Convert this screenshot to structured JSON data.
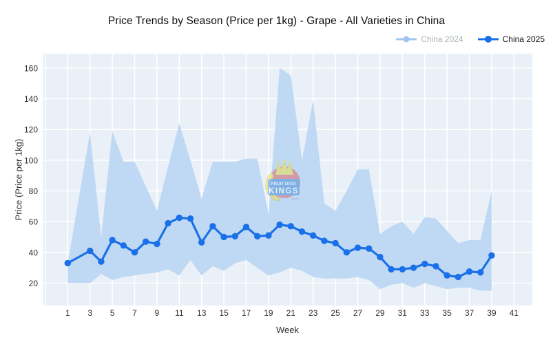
{
  "chart_data": {
    "type": "line",
    "title": "Price Trends by Season (Price per 1kg) - Grape - All Varieties in China",
    "xlabel": "Week",
    "ylabel": "Price (Price per 1kg)",
    "x_ticks": [
      1,
      3,
      5,
      7,
      9,
      11,
      13,
      15,
      17,
      19,
      21,
      23,
      25,
      27,
      29,
      31,
      33,
      35,
      37,
      39,
      41
    ],
    "x_grid_extra": [
      -1
    ],
    "y_ticks": [
      20,
      40,
      60,
      80,
      100,
      120,
      140,
      160
    ],
    "grid_on": true,
    "plot_bg_color": "#e9f0f7",
    "grid_color": "#ffffff",
    "tick_label_color": "#2f2f2f",
    "legend_position": "top-right",
    "legend": [
      {
        "label": "China 2024",
        "swatch_color": "#a0c6f0",
        "label_color": "#a8b3ba",
        "dimmed": true
      },
      {
        "label": "China 2025",
        "swatch_color": "#1a70e8",
        "label_color": "#111111",
        "dimmed": false
      }
    ],
    "band": {
      "fill_color": "#bfd9f4",
      "weeks": [
        1,
        3,
        4,
        5,
        6,
        7,
        8,
        9,
        10,
        11,
        12,
        13,
        14,
        15,
        16,
        17,
        18,
        19,
        20,
        21,
        22,
        23,
        24,
        25,
        26,
        27,
        28,
        29,
        30,
        31,
        32,
        33,
        34,
        35,
        36,
        37,
        38,
        39
      ],
      "upper": [
        33,
        118,
        50,
        119,
        99,
        99,
        83,
        67,
        96,
        124,
        100,
        75,
        99,
        99,
        99,
        101,
        101,
        65,
        160,
        155,
        100,
        139,
        72,
        67,
        80,
        94,
        94,
        52,
        57,
        60,
        52,
        63,
        62,
        54,
        46,
        48,
        48,
        80
      ],
      "lower": [
        20,
        20,
        26,
        22,
        24,
        25,
        26,
        27,
        29,
        25,
        35,
        25,
        31,
        28,
        33,
        35,
        30,
        25,
        27,
        30,
        28,
        24,
        23,
        23,
        23,
        24,
        22,
        16,
        19,
        20,
        17,
        20,
        18,
        16,
        17,
        17,
        15,
        15
      ]
    },
    "series": [
      {
        "name": "China 2025",
        "color": "#1a70e8",
        "marker": "circle",
        "weeks": [
          1,
          3,
          4,
          5,
          6,
          7,
          8,
          9,
          10,
          11,
          12,
          13,
          14,
          15,
          16,
          17,
          18,
          19,
          20,
          21,
          22,
          23,
          24,
          25,
          26,
          27,
          28,
          29,
          30,
          31,
          32,
          33,
          34,
          35,
          36,
          37,
          38,
          39
        ],
        "values": [
          33,
          41,
          34,
          48,
          44.5,
          40,
          47,
          45.5,
          59,
          62.5,
          62,
          46.5,
          57,
          50,
          50.5,
          56.5,
          50.5,
          51,
          58,
          57,
          53.5,
          51,
          47.5,
          46,
          40,
          43,
          42.5,
          37,
          29,
          29,
          30,
          32.5,
          31,
          25,
          24,
          27.5,
          27,
          38
        ]
      }
    ],
    "note_missing_week": 2
  },
  "watermark": {
    "line1": "FRUIT DATA",
    "line2": "KINGS",
    "line3": ".com"
  }
}
